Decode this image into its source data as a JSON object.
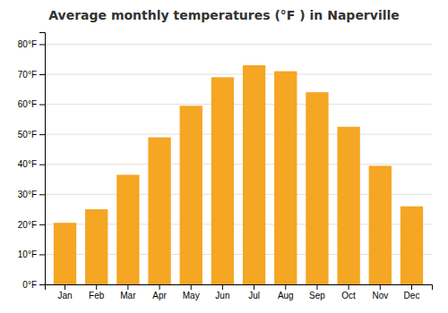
{
  "chart_data": {
    "type": "bar",
    "title": "Average monthly temperatures (°F ) in Naperville",
    "categories": [
      "Jan",
      "Feb",
      "Mar",
      "Apr",
      "May",
      "Jun",
      "Jul",
      "Aug",
      "Sep",
      "Oct",
      "Nov",
      "Dec"
    ],
    "values": [
      20.5,
      25.0,
      36.5,
      49.0,
      59.5,
      69.0,
      73.0,
      71.0,
      64.0,
      52.5,
      39.5,
      26.0
    ],
    "color": "#F5A623",
    "ylim": [
      0,
      84
    ],
    "yticks": [
      {
        "value": 0,
        "label": "0°F"
      },
      {
        "value": 10,
        "label": "10°F"
      },
      {
        "value": 20,
        "label": "20°F"
      },
      {
        "value": 30,
        "label": "30°F"
      },
      {
        "value": 40,
        "label": "40°F"
      },
      {
        "value": 50,
        "label": "50°F"
      },
      {
        "value": 60,
        "label": "60°F"
      },
      {
        "value": 70,
        "label": "70°F"
      },
      {
        "value": 80,
        "label": "80°F"
      }
    ],
    "grid": true
  }
}
